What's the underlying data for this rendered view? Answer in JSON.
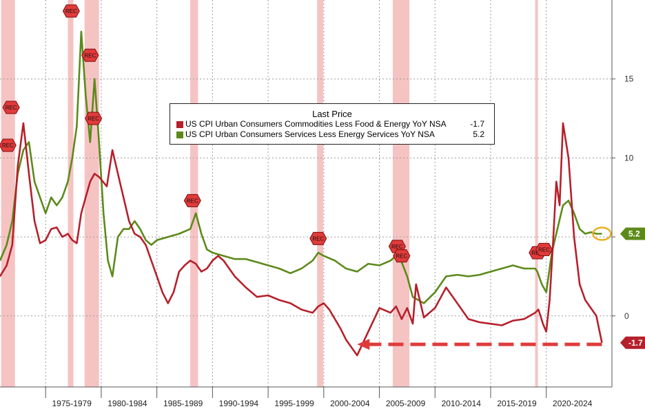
{
  "chart_data": {
    "type": "line",
    "legend_title": "Last Price",
    "legend_placement": "top-center",
    "x_tick_labels": [
      "1975-1979",
      "1980-1984",
      "1985-1989",
      "1990-1994",
      "1995-1999",
      "2000-2004",
      "2005-2009",
      "2010-2014",
      "2015-2019",
      "2020-2024"
    ],
    "y_tick_labels": [
      "0",
      "5",
      "10",
      "15"
    ],
    "ylim": [
      -4.5,
      20
    ],
    "xlim": [
      1970.9,
      2025.9
    ],
    "grid": true,
    "recession_band_color": "#f4b8b8",
    "recession_label": "REC",
    "recessions": [
      [
        1971.0,
        1972.25
      ],
      [
        1977.0,
        1977.5
      ],
      [
        1978.5,
        1979.8
      ],
      [
        1988.0,
        1988.7
      ],
      [
        1999.4,
        1999.95
      ],
      [
        2006.2,
        2007.7
      ],
      [
        2019.0,
        2019.2
      ]
    ],
    "series": [
      {
        "name": "US CPI Urban Consumers Commodities Less Food & Energy YoY NSA",
        "color": "#b5202b",
        "last_value": "-1.7",
        "x": [
          1970.9,
          1971.5,
          1972.0,
          1972.5,
          1973.0,
          1973.5,
          1974.0,
          1974.5,
          1975.0,
          1975.5,
          1976.0,
          1976.5,
          1977.0,
          1977.4,
          1977.8,
          1978.2,
          1978.6,
          1979.0,
          1979.4,
          1979.8,
          1980.5,
          1981.0,
          1981.5,
          1982.0,
          1982.5,
          1983.0,
          1983.5,
          1984.0,
          1984.5,
          1985.0,
          1985.5,
          1986.0,
          1986.5,
          1987.0,
          1987.5,
          1988.0,
          1988.5,
          1989.0,
          1989.5,
          1990.0,
          1990.5,
          1991.0,
          1991.5,
          1992.0,
          1993.0,
          1994.0,
          1995.0,
          1996.0,
          1997.0,
          1998.0,
          1999.0,
          1999.5,
          2000.0,
          2000.5,
          2001.0,
          2001.5,
          2002.0,
          2002.5,
          2003.0,
          2004.0,
          2005.0,
          2006.0,
          2006.5,
          2007.0,
          2007.5,
          2008.0,
          2008.3,
          2009.0,
          2010.0,
          2011.0,
          2012.0,
          2013.0,
          2014.0,
          2015.0,
          2016.0,
          2017.0,
          2018.0,
          2019.0,
          2019.3,
          2019.7,
          2020.0,
          2020.3,
          2020.6,
          2020.9,
          2021.2,
          2021.5,
          2022.0,
          2022.5,
          2023.0,
          2023.5,
          2024.0,
          2024.5,
          2025.0
        ],
        "y": [
          2.5,
          3.2,
          4.5,
          9.5,
          12.2,
          9.0,
          6.0,
          4.6,
          4.8,
          5.5,
          5.6,
          5.0,
          5.2,
          4.8,
          4.6,
          6.5,
          7.5,
          8.5,
          9.0,
          8.8,
          8.2,
          10.5,
          9.0,
          7.5,
          6.0,
          5.2,
          5.0,
          4.5,
          3.5,
          2.5,
          1.5,
          0.8,
          1.5,
          2.8,
          3.2,
          3.5,
          3.3,
          2.8,
          3.0,
          3.5,
          3.8,
          3.5,
          3.0,
          2.5,
          1.8,
          1.2,
          1.3,
          1.0,
          0.8,
          0.4,
          0.2,
          0.6,
          0.8,
          0.4,
          -0.2,
          -0.8,
          -1.5,
          -2.0,
          -2.5,
          -1.0,
          0.5,
          0.2,
          0.6,
          -0.2,
          0.5,
          -0.5,
          2.0,
          -0.1,
          0.5,
          1.8,
          0.8,
          -0.2,
          -0.4,
          -0.5,
          -0.6,
          -0.3,
          -0.2,
          0.2,
          0.4,
          -0.5,
          -1.0,
          1.0,
          4.5,
          8.5,
          7.0,
          12.2,
          10.0,
          5.0,
          2.0,
          1.0,
          0.5,
          0.0,
          -1.7
        ]
      },
      {
        "name": "US CPI Urban Consumers Services Less Energy Services YoY NSA",
        "color": "#5c8a1a",
        "last_value": "5.2",
        "x": [
          1970.9,
          1971.5,
          1972.0,
          1972.5,
          1973.0,
          1973.5,
          1974.0,
          1974.5,
          1975.0,
          1975.5,
          1976.0,
          1976.5,
          1977.0,
          1977.4,
          1977.8,
          1978.2,
          1978.6,
          1979.0,
          1979.4,
          1979.8,
          1980.2,
          1980.6,
          1981.0,
          1981.5,
          1982.0,
          1982.5,
          1983.0,
          1983.5,
          1984.0,
          1984.5,
          1985.0,
          1986.0,
          1987.0,
          1988.0,
          1988.5,
          1989.0,
          1989.5,
          1990.0,
          1991.0,
          1992.0,
          1993.0,
          1994.0,
          1995.0,
          1996.0,
          1997.0,
          1998.0,
          1999.0,
          1999.5,
          2000.0,
          2001.0,
          2002.0,
          2003.0,
          2004.0,
          2005.0,
          2006.0,
          2006.5,
          2007.0,
          2007.5,
          2008.0,
          2009.0,
          2010.0,
          2011.0,
          2012.0,
          2013.0,
          2014.0,
          2015.0,
          2016.0,
          2017.0,
          2018.0,
          2019.0,
          2019.2,
          2019.6,
          2020.0,
          2020.5,
          2021.0,
          2021.5,
          2022.0,
          2022.5,
          2023.0,
          2023.5,
          2024.0,
          2024.5,
          2025.0
        ],
        "y": [
          3.5,
          4.5,
          6.0,
          9.0,
          10.5,
          11.0,
          8.5,
          7.5,
          6.5,
          7.5,
          7.0,
          7.5,
          8.5,
          10.0,
          12.0,
          18.0,
          14.0,
          11.0,
          15.0,
          11.0,
          6.5,
          3.5,
          2.5,
          5.0,
          5.5,
          5.5,
          6.0,
          5.5,
          4.8,
          4.5,
          4.8,
          5.0,
          5.2,
          5.5,
          6.5,
          5.2,
          4.2,
          4.0,
          3.8,
          3.6,
          3.6,
          3.4,
          3.2,
          3.0,
          2.7,
          3.0,
          3.5,
          4.0,
          3.8,
          3.5,
          3.0,
          2.8,
          3.3,
          3.2,
          3.5,
          3.8,
          3.4,
          2.5,
          1.2,
          0.8,
          1.5,
          2.5,
          2.6,
          2.5,
          2.6,
          2.8,
          3.0,
          3.2,
          3.0,
          3.0,
          2.8,
          2.0,
          1.5,
          4.0,
          5.5,
          7.0,
          7.3,
          6.5,
          5.5,
          5.2,
          5.3,
          5.2,
          5.2
        ]
      }
    ],
    "annotation_arrow": {
      "from": [
        2025.0,
        -1.8
      ],
      "to": [
        2003.0,
        -1.8
      ],
      "color": "#e03b3b"
    }
  }
}
